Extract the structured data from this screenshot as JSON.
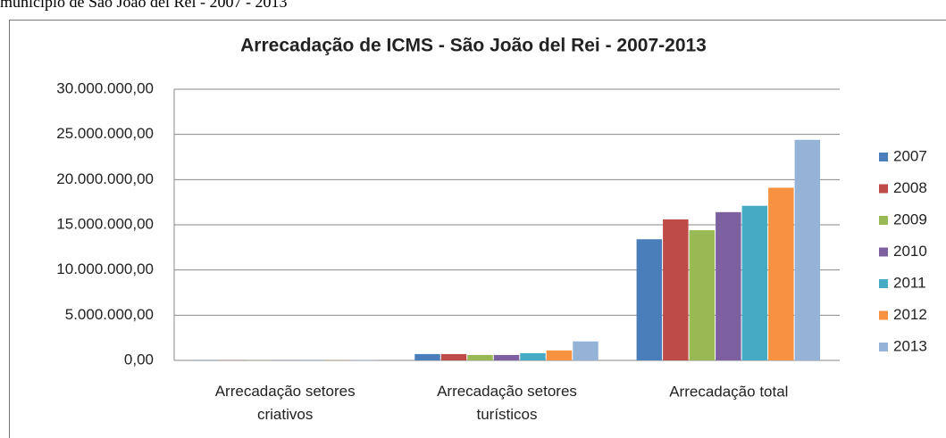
{
  "caption": "município de São João del Rei - 2007 - 2013",
  "chart_data": {
    "type": "bar",
    "title": "Arrecadação de ICMS - São João del Rei - 2007-2013",
    "categories": [
      "Arrecadação setores criativos",
      "Arrecadação setores turísticos",
      "Arrecadação total"
    ],
    "series": [
      {
        "name": "2007",
        "color": "#4a7ebb",
        "values": [
          20000,
          700000,
          13400000
        ]
      },
      {
        "name": "2008",
        "color": "#be4b48",
        "values": [
          20000,
          700000,
          15600000
        ]
      },
      {
        "name": "2009",
        "color": "#98b954",
        "values": [
          20000,
          600000,
          14400000
        ]
      },
      {
        "name": "2010",
        "color": "#7d60a0",
        "values": [
          20000,
          600000,
          16400000
        ]
      },
      {
        "name": "2011",
        "color": "#46aac5",
        "values": [
          20000,
          800000,
          17100000
        ]
      },
      {
        "name": "2012",
        "color": "#f69240",
        "values": [
          20000,
          1100000,
          19100000
        ]
      },
      {
        "name": "2013",
        "color": "#95b3d7",
        "values": [
          30000,
          2100000,
          24400000
        ]
      }
    ],
    "ylim": [
      0,
      30000000
    ],
    "yticks": [
      {
        "value": 0,
        "label": "0,00"
      },
      {
        "value": 5000000,
        "label": "5.000.000,00"
      },
      {
        "value": 10000000,
        "label": "10.000.000,00"
      },
      {
        "value": 15000000,
        "label": "15.000.000,00"
      },
      {
        "value": 20000000,
        "label": "20.000.000,00"
      },
      {
        "value": 25000000,
        "label": "25.000.000,00"
      },
      {
        "value": 30000000,
        "label": "30.000.000,00"
      }
    ],
    "grid": true,
    "legend": "right"
  }
}
